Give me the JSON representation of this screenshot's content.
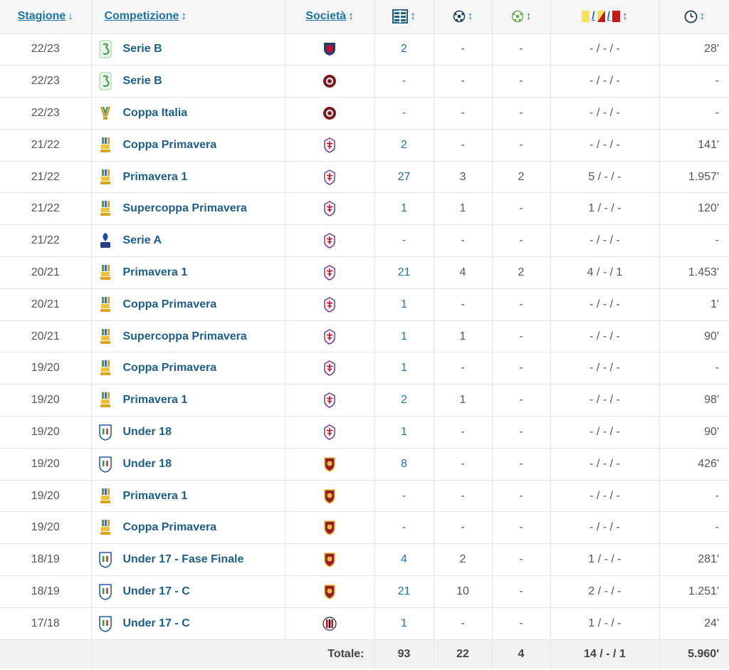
{
  "header": {
    "season": "Stagione",
    "season_sort": "↓",
    "competition": "Competizione",
    "competition_sort": "↕",
    "club": "Società",
    "club_sort": "↕",
    "appearances_icon": "appearances-icon",
    "goals_icon": "goal-ball-icon",
    "assists_icon": "assist-ball-icon",
    "cards_icon": "cards-icon",
    "cards_sep": "/",
    "minutes_icon": "clock-icon",
    "sort_glyph": "↕"
  },
  "rows": [
    {
      "season": "22/23",
      "competition": "Serie B",
      "comp_icon": "serie-b-logo",
      "club": "cosenza",
      "appearances": "2",
      "goals": "-",
      "assists": "-",
      "cards": "- / - / -",
      "minutes": "28'"
    },
    {
      "season": "22/23",
      "competition": "Serie B",
      "comp_icon": "serie-b-logo",
      "club": "salernitana",
      "appearances": "-",
      "goals": "-",
      "assists": "-",
      "cards": "- / - / -",
      "minutes": "-"
    },
    {
      "season": "22/23",
      "competition": "Coppa Italia",
      "comp_icon": "coppa-italia-logo",
      "club": "salernitana",
      "appearances": "-",
      "goals": "-",
      "assists": "-",
      "cards": "- / - / -",
      "minutes": "-"
    },
    {
      "season": "21/22",
      "competition": "Coppa Primavera",
      "comp_icon": "primavera-logo",
      "club": "fiorentina",
      "appearances": "2",
      "goals": "-",
      "assists": "-",
      "cards": "- / - / -",
      "minutes": "141'"
    },
    {
      "season": "21/22",
      "competition": "Primavera 1",
      "comp_icon": "primavera-logo",
      "club": "fiorentina",
      "appearances": "27",
      "goals": "3",
      "assists": "2",
      "cards": "5 / - / -",
      "minutes": "1.957'"
    },
    {
      "season": "21/22",
      "competition": "Supercoppa Primavera",
      "comp_icon": "primavera-logo",
      "club": "fiorentina",
      "appearances": "1",
      "goals": "1",
      "assists": "-",
      "cards": "1 / - / -",
      "minutes": "120'"
    },
    {
      "season": "21/22",
      "competition": "Serie A",
      "comp_icon": "serie-a-logo",
      "club": "fiorentina",
      "appearances": "-",
      "goals": "-",
      "assists": "-",
      "cards": "- / - / -",
      "minutes": "-"
    },
    {
      "season": "20/21",
      "competition": "Primavera 1",
      "comp_icon": "primavera-logo",
      "club": "fiorentina",
      "appearances": "21",
      "goals": "4",
      "assists": "2",
      "cards": "4 / - / 1",
      "minutes": "1.453'"
    },
    {
      "season": "20/21",
      "competition": "Coppa Primavera",
      "comp_icon": "primavera-logo",
      "club": "fiorentina",
      "appearances": "1",
      "goals": "-",
      "assists": "-",
      "cards": "- / - / -",
      "minutes": "1'"
    },
    {
      "season": "20/21",
      "competition": "Supercoppa Primavera",
      "comp_icon": "primavera-logo",
      "club": "fiorentina",
      "appearances": "1",
      "goals": "1",
      "assists": "-",
      "cards": "- / - / -",
      "minutes": "90'"
    },
    {
      "season": "19/20",
      "competition": "Coppa Primavera",
      "comp_icon": "primavera-logo",
      "club": "fiorentina",
      "appearances": "1",
      "goals": "-",
      "assists": "-",
      "cards": "- / - / -",
      "minutes": "-"
    },
    {
      "season": "19/20",
      "competition": "Primavera 1",
      "comp_icon": "primavera-logo",
      "club": "fiorentina",
      "appearances": "2",
      "goals": "1",
      "assists": "-",
      "cards": "- / - / -",
      "minutes": "98'"
    },
    {
      "season": "19/20",
      "competition": "Under 18",
      "comp_icon": "figc-logo",
      "club": "fiorentina",
      "appearances": "1",
      "goals": "-",
      "assists": "-",
      "cards": "- / - / -",
      "minutes": "90'"
    },
    {
      "season": "19/20",
      "competition": "Under 18",
      "comp_icon": "figc-logo",
      "club": "roma",
      "appearances": "8",
      "goals": "-",
      "assists": "-",
      "cards": "- / - / -",
      "minutes": "426'"
    },
    {
      "season": "19/20",
      "competition": "Primavera 1",
      "comp_icon": "primavera-logo",
      "club": "roma",
      "appearances": "-",
      "goals": "-",
      "assists": "-",
      "cards": "- / - / -",
      "minutes": "-"
    },
    {
      "season": "19/20",
      "competition": "Coppa Primavera",
      "comp_icon": "primavera-logo",
      "club": "roma",
      "appearances": "-",
      "goals": "-",
      "assists": "-",
      "cards": "- / - / -",
      "minutes": "-"
    },
    {
      "season": "18/19",
      "competition": "Under 17 - Fase Finale",
      "comp_icon": "figc-logo",
      "club": "roma",
      "appearances": "4",
      "goals": "2",
      "assists": "-",
      "cards": "1 / - / -",
      "minutes": "281'"
    },
    {
      "season": "18/19",
      "competition": "Under 17 - C",
      "comp_icon": "figc-logo",
      "club": "roma",
      "appearances": "21",
      "goals": "10",
      "assists": "-",
      "cards": "2 / - / -",
      "minutes": "1.251'"
    },
    {
      "season": "17/18",
      "competition": "Under 17 - C",
      "comp_icon": "figc-logo",
      "club": "milan",
      "appearances": "1",
      "goals": "-",
      "assists": "-",
      "cards": "1 / - / -",
      "minutes": "24'"
    }
  ],
  "totals": {
    "label": "Totale:",
    "appearances": "93",
    "goals": "22",
    "assists": "4",
    "cards": "14 / - / 1",
    "minutes": "5.960'"
  },
  "colors": {
    "link": "#1d75a3",
    "header_bg": "#f6f6f6",
    "footer_bg": "#f2f2f2",
    "yellow_card": "#f6e15d",
    "red_card": "#c01b1b",
    "cosenza": "#2a3a6e",
    "salernitana": "#7a1c22",
    "fiorentina": "#6b3d8f",
    "roma": "#8e1f2b",
    "milan": "#c8102e"
  }
}
